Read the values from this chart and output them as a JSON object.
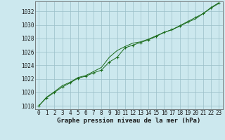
{
  "x_values": [
    0,
    1,
    2,
    3,
    4,
    5,
    6,
    7,
    8,
    9,
    10,
    11,
    12,
    13,
    14,
    15,
    16,
    17,
    18,
    19,
    20,
    21,
    22,
    23
  ],
  "y_line1": [
    1018.0,
    1019.2,
    1020.0,
    1020.8,
    1021.4,
    1022.1,
    1022.4,
    1022.9,
    1023.3,
    1024.5,
    1025.2,
    1026.6,
    1027.0,
    1027.4,
    1027.8,
    1028.3,
    1028.9,
    1029.3,
    1029.9,
    1030.5,
    1031.1,
    1031.7,
    1032.6,
    1033.3
  ],
  "y_line2": [
    1018.0,
    1019.3,
    1020.1,
    1021.0,
    1021.5,
    1022.2,
    1022.5,
    1023.1,
    1023.7,
    1025.2,
    1026.2,
    1026.8,
    1027.3,
    1027.5,
    1027.9,
    1028.4,
    1028.9,
    1029.3,
    1029.8,
    1030.4,
    1030.9,
    1031.7,
    1032.5,
    1033.2
  ],
  "line_color": "#1a6b1a",
  "bg_color": "#cce8ee",
  "grid_color": "#9bbfc8",
  "ylim_min": 1017.5,
  "ylim_max": 1033.5,
  "yticks": [
    1018,
    1020,
    1022,
    1024,
    1026,
    1028,
    1030,
    1032
  ],
  "xticks": [
    0,
    1,
    2,
    3,
    4,
    5,
    6,
    7,
    8,
    9,
    10,
    11,
    12,
    13,
    14,
    15,
    16,
    17,
    18,
    19,
    20,
    21,
    22,
    23
  ],
  "xlabel": "Graphe pression niveau de la mer (hPa)",
  "tick_fontsize": 5.5,
  "label_fontsize": 6.5
}
